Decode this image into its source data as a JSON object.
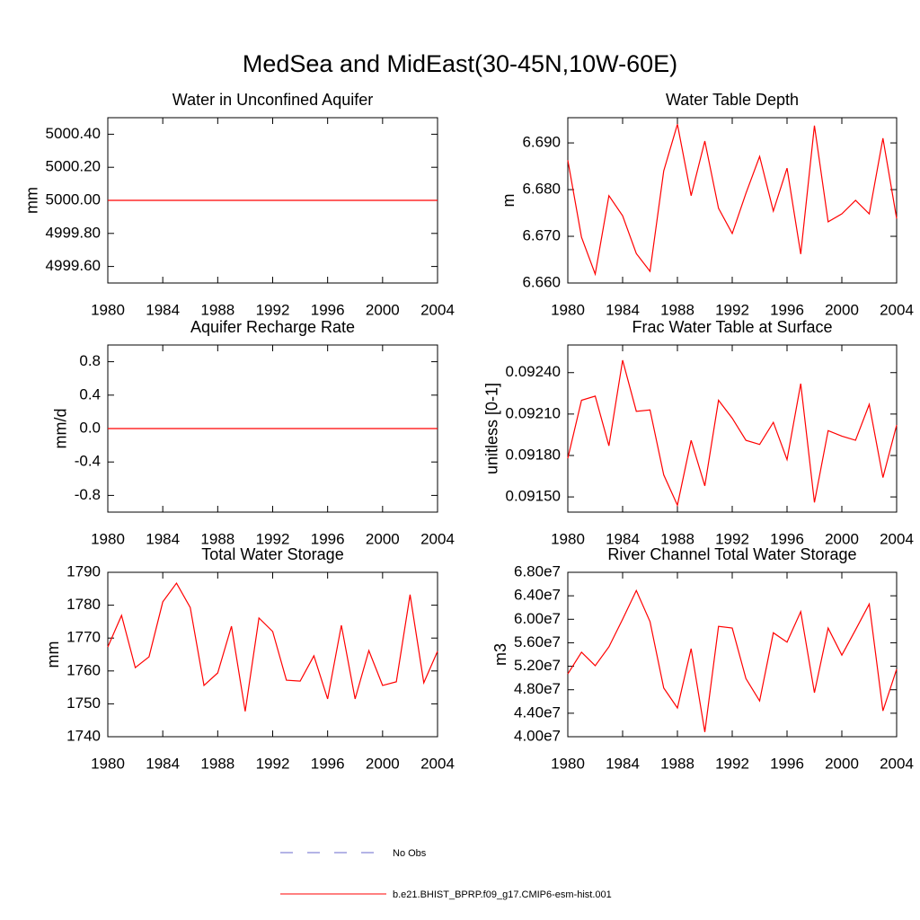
{
  "title": "MedSea and MidEast(30-45N,10W-60E)",
  "legend": [
    {
      "name": "No Obs",
      "color": "#6a6acd",
      "dash": true
    },
    {
      "name": "b.e21.BHIST_BPRP.f09_g17.CMIP6-esm-hist.001",
      "color": "#ff0000",
      "dash": false
    }
  ],
  "chart_data": [
    {
      "type": "line",
      "title": "Water in Unconfined Aquifer",
      "ylabel": "mm",
      "x": [
        1980,
        1981,
        1982,
        1983,
        1984,
        1985,
        1986,
        1987,
        1988,
        1989,
        1990,
        1991,
        1992,
        1993,
        1994,
        1995,
        1996,
        1997,
        1998,
        1999,
        2000,
        2001,
        2002,
        2003,
        2004
      ],
      "values": [
        5000,
        5000,
        5000,
        5000,
        5000,
        5000,
        5000,
        5000,
        5000,
        5000,
        5000,
        5000,
        5000,
        5000,
        5000,
        5000,
        5000,
        5000,
        5000,
        5000,
        5000,
        5000,
        5000,
        5000,
        5000
      ],
      "color": "#ff0000",
      "xlim": [
        1980,
        2004
      ],
      "xticks": [
        1980,
        1984,
        1988,
        1992,
        1996,
        2000,
        2004
      ],
      "ylim": [
        4999.5,
        5000.5
      ],
      "yticks": [
        {
          "value": 4999.6,
          "label": "4999.60"
        },
        {
          "value": 4999.8,
          "label": "4999.80"
        },
        {
          "value": 5000,
          "label": "5000.00"
        },
        {
          "value": 5000.2,
          "label": "5000.20"
        },
        {
          "value": 5000.4,
          "label": "5000.40"
        }
      ]
    },
    {
      "type": "line",
      "title": "Water Table Depth",
      "ylabel": "m",
      "x": [
        1980,
        1981,
        1982,
        1983,
        1984,
        1985,
        1986,
        1987,
        1988,
        1989,
        1990,
        1991,
        1992,
        1993,
        1994,
        1995,
        1996,
        1997,
        1998,
        1999,
        2000,
        2001,
        2002,
        2003,
        2004
      ],
      "values": [
        6.6863,
        6.6698,
        6.6619,
        6.6787,
        6.6744,
        6.6663,
        6.6625,
        6.684,
        6.694,
        6.6787,
        6.6904,
        6.676,
        6.6706,
        6.6792,
        6.6871,
        6.6754,
        6.6846,
        6.6662,
        6.6937,
        6.6731,
        6.6748,
        6.6777,
        6.6748,
        6.691,
        6.6738
      ],
      "color": "#ff0000",
      "xlim": [
        1980,
        2004
      ],
      "xticks": [
        1980,
        1984,
        1988,
        1992,
        1996,
        2000,
        2004
      ],
      "ylim": [
        6.66,
        6.6954
      ],
      "yticks": [
        {
          "value": 6.66,
          "label": "6.660"
        },
        {
          "value": 6.67,
          "label": "6.670"
        },
        {
          "value": 6.68,
          "label": "6.680"
        },
        {
          "value": 6.69,
          "label": "6.690"
        }
      ]
    },
    {
      "type": "line",
      "title": "Aquifer Recharge Rate",
      "ylabel": "mm/d",
      "x": [
        1980,
        1981,
        1982,
        1983,
        1984,
        1985,
        1986,
        1987,
        1988,
        1989,
        1990,
        1991,
        1992,
        1993,
        1994,
        1995,
        1996,
        1997,
        1998,
        1999,
        2000,
        2001,
        2002,
        2003,
        2004
      ],
      "values": [
        0,
        0,
        0,
        0,
        0,
        0,
        0,
        0,
        0,
        0,
        0,
        0,
        0,
        0,
        0,
        0,
        0,
        0,
        0,
        0,
        0,
        0,
        0,
        0,
        0
      ],
      "color": "#ff0000",
      "xlim": [
        1980,
        2004
      ],
      "xticks": [
        1980,
        1984,
        1988,
        1992,
        1996,
        2000,
        2004
      ],
      "ylim": [
        -1,
        1
      ],
      "yticks": [
        -0.8,
        -0.4,
        {
          "value": 0,
          "label": "0.0"
        },
        0.4,
        0.8
      ]
    },
    {
      "type": "line",
      "title": "Frac Water Table at Surface",
      "ylabel": "unitless [0-1]",
      "x": [
        1980,
        1981,
        1982,
        1983,
        1984,
        1985,
        1986,
        1987,
        1988,
        1989,
        1990,
        1991,
        1992,
        1993,
        1994,
        1995,
        1996,
        1997,
        1998,
        1999,
        2000,
        2001,
        2002,
        2003,
        2004
      ],
      "values": [
        0.09178,
        0.0922,
        0.09223,
        0.09187,
        0.09249,
        0.09212,
        0.09213,
        0.09166,
        0.09144,
        0.09191,
        0.09158,
        0.0922,
        0.09207,
        0.09191,
        0.09188,
        0.09204,
        0.09177,
        0.09232,
        0.09146,
        0.09198,
        0.09194,
        0.09191,
        0.09217,
        0.09164,
        0.09202
      ],
      "color": "#ff0000",
      "xlim": [
        1980,
        2004
      ],
      "xticks": [
        1980,
        1984,
        1988,
        1992,
        1996,
        2000,
        2004
      ],
      "ylim": [
        0.09139,
        0.0926
      ],
      "yticks": [
        {
          "value": 0.0915,
          "label": "0.09150"
        },
        {
          "value": 0.0918,
          "label": "0.09180"
        },
        {
          "value": 0.0921,
          "label": "0.09210"
        },
        {
          "value": 0.0924,
          "label": "0.09240"
        }
      ]
    },
    {
      "type": "line",
      "title": "Total Water Storage",
      "ylabel": "mm",
      "x": [
        1980,
        1981,
        1982,
        1983,
        1984,
        1985,
        1986,
        1987,
        1988,
        1989,
        1990,
        1991,
        1992,
        1993,
        1994,
        1995,
        1996,
        1997,
        1998,
        1999,
        2000,
        2001,
        2002,
        2003,
        2004
      ],
      "values": [
        1767.3,
        1776.9,
        1761.0,
        1764.3,
        1781.0,
        1786.7,
        1779.3,
        1755.6,
        1759.4,
        1773.6,
        1747.7,
        1776.1,
        1772.0,
        1757.2,
        1756.9,
        1764.6,
        1751.5,
        1773.9,
        1751.5,
        1766.2,
        1755.6,
        1756.7,
        1783.2,
        1756.4,
        1766.0
      ],
      "color": "#ff0000",
      "xlim": [
        1980,
        2004
      ],
      "xticks": [
        1980,
        1984,
        1988,
        1992,
        1996,
        2000,
        2004
      ],
      "ylim": [
        1740,
        1790
      ],
      "yticks": [
        1740,
        1750,
        1760,
        1770,
        1780,
        1790
      ]
    },
    {
      "type": "line",
      "title": "River Channel Total Water Storage",
      "ylabel": "m3",
      "x": [
        1980,
        1981,
        1982,
        1983,
        1984,
        1985,
        1986,
        1987,
        1988,
        1989,
        1990,
        1991,
        1992,
        1993,
        1994,
        1995,
        1996,
        1997,
        1998,
        1999,
        2000,
        2001,
        2002,
        2003,
        2004
      ],
      "values": [
        50700000,
        54400000,
        52100000,
        55300000,
        60000000,
        64900000,
        59600000,
        48300000,
        44900000,
        55000000,
        40800000,
        58800000,
        58500000,
        49900000,
        46100000,
        57700000,
        56100000,
        61300000,
        47500000,
        58500000,
        53900000,
        58200000,
        62600000,
        44400000,
        51500000
      ],
      "color": "#ff0000",
      "xlim": [
        1980,
        2004
      ],
      "xticks": [
        1980,
        1984,
        1988,
        1992,
        1996,
        2000,
        2004
      ],
      "ylim": [
        40000000,
        68000000
      ],
      "yticks": [
        {
          "value": 40000000,
          "label": "4.00e7"
        },
        {
          "value": 44000000,
          "label": "4.40e7"
        },
        {
          "value": 48000000,
          "label": "4.80e7"
        },
        {
          "value": 52000000,
          "label": "5.20e7"
        },
        {
          "value": 56000000,
          "label": "5.60e7"
        },
        {
          "value": 60000000,
          "label": "6.00e7"
        },
        {
          "value": 64000000,
          "label": "6.40e7"
        },
        {
          "value": 68000000,
          "label": "6.80e7"
        }
      ]
    }
  ]
}
